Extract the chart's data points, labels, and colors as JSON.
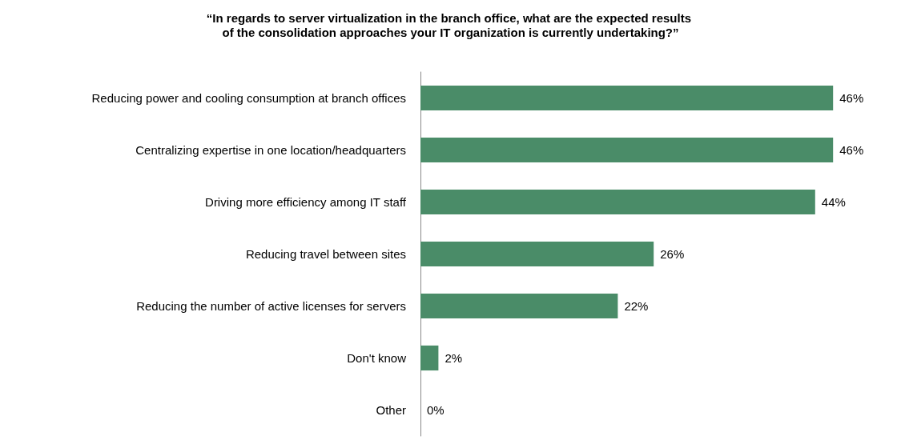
{
  "chart_data": {
    "type": "bar",
    "orientation": "horizontal",
    "title": "“In regards to server virtualization in the branch office, what are the expected results of the consolidation approaches your IT organization is currently undertaking?”",
    "categories": [
      "Reducing power and cooling consumption at branch offices",
      "Centralizing expertise in one location/headquarters",
      "Driving more efficiency among IT staff",
      "Reducing travel between sites",
      "Reducing the number of active licenses for servers",
      "Don't know",
      "Other"
    ],
    "values": [
      46,
      46,
      44,
      26,
      22,
      2,
      0
    ],
    "value_labels": [
      "46%",
      "46%",
      "44%",
      "26%",
      "22%",
      "2%",
      "0%"
    ],
    "color": "#4a8c68",
    "tick_labels": "y",
    "grid": false,
    "legend": false
  }
}
